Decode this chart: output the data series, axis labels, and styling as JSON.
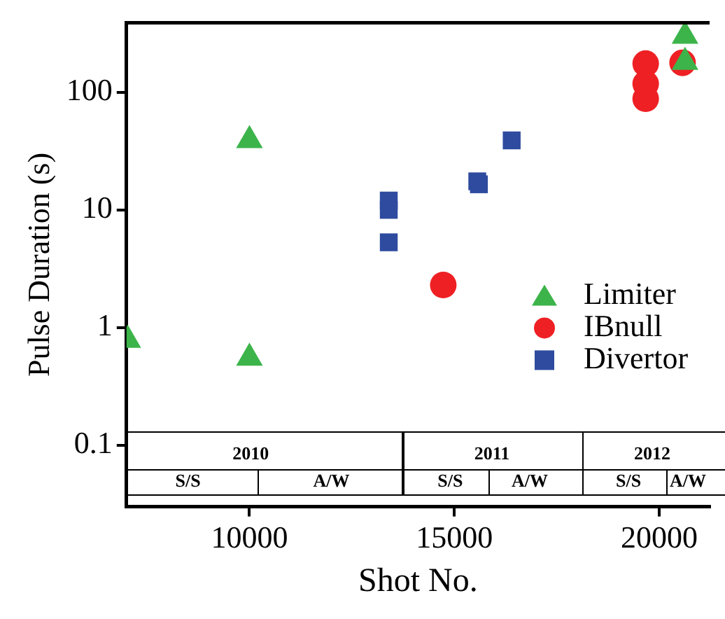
{
  "chart_data": {
    "type": "scatter",
    "xlabel": "Shot No.",
    "ylabel": "Pulse Duration (s)",
    "xlim": [
      7000,
      21230
    ],
    "xticks": [
      10000,
      15000,
      20000
    ],
    "ylim": [
      0.03,
      390
    ],
    "yticks": [
      0.1,
      1,
      10,
      100
    ],
    "log": "y",
    "grid": false,
    "legend": "right",
    "series": [
      {
        "name": "Limiter",
        "color": "#3cb44a",
        "marker": "triangle",
        "x": [
          7030,
          10000,
          10000,
          20630,
          20630
        ],
        "values": [
          0.78,
          39,
          0.55,
          300,
          180
        ]
      },
      {
        "name": "IBnull",
        "color": "#ee2024",
        "marker": "circle",
        "x": [
          14730,
          19670,
          19670,
          19670,
          20570
        ],
        "values": [
          2.3,
          175,
          118,
          88,
          178
        ]
      },
      {
        "name": "Divertor",
        "color": "#2e4b9f",
        "marker": "square",
        "x": [
          13400,
          13400,
          13400,
          15560,
          15600,
          16400
        ],
        "values": [
          12,
          10,
          5.3,
          17.5,
          16.5,
          39
        ]
      }
    ],
    "annotations": [
      "2010",
      "2011",
      "2012",
      "S/S",
      "A/W",
      "S/S",
      "A/W",
      "S/S",
      "A/W"
    ]
  }
}
